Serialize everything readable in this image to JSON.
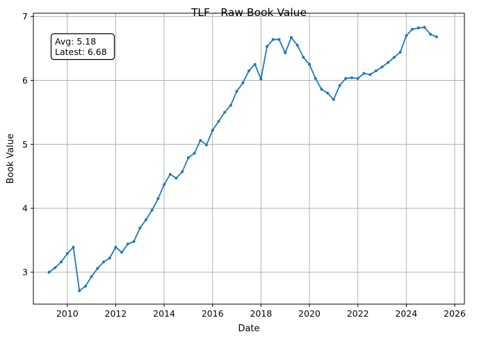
{
  "chart_data": {
    "type": "line",
    "title": "TLF - Raw Book Value",
    "xlabel": "Date",
    "ylabel": "Book Value",
    "xlim": [
      2008.6,
      2026.4
    ],
    "ylim": [
      2.5,
      7.05
    ],
    "x_ticks": [
      2010,
      2012,
      2014,
      2016,
      2018,
      2020,
      2022,
      2024,
      2026
    ],
    "y_ticks": [
      3,
      4,
      5,
      6,
      7
    ],
    "grid": true,
    "colors": {
      "line": "#1f77b4",
      "grid": "#b0b0b0",
      "box_edge": "#000000"
    },
    "annotation": {
      "avg_text": "Avg: 5.18",
      "latest_text": "Latest: 6.68",
      "placement": "top-left"
    },
    "series": [
      {
        "x": [
          2009.25,
          2009.5,
          2009.75,
          2010.0,
          2010.25,
          2010.5,
          2010.75,
          2011.0,
          2011.25,
          2011.5,
          2011.75,
          2012.0,
          2012.25,
          2012.5,
          2012.75,
          2013.0,
          2013.25,
          2013.5,
          2013.75,
          2014.0,
          2014.25,
          2014.5,
          2014.75,
          2015.0,
          2015.25,
          2015.5,
          2015.75,
          2016.0,
          2016.25,
          2016.5,
          2016.75,
          2017.0,
          2017.25,
          2017.5,
          2017.75,
          2018.0,
          2018.25,
          2018.5,
          2018.75,
          2019.0,
          2019.25,
          2019.5,
          2019.75,
          2020.0,
          2020.25,
          2020.5,
          2020.75,
          2021.0,
          2021.25,
          2021.5,
          2021.75,
          2022.0,
          2022.25,
          2022.5,
          2022.75,
          2023.0,
          2023.25,
          2023.5,
          2023.75,
          2024.0,
          2024.25,
          2024.5,
          2024.75,
          2025.0,
          2025.25
        ],
        "values": [
          3.0,
          3.07,
          3.16,
          3.29,
          3.39,
          2.71,
          2.78,
          2.93,
          3.06,
          3.16,
          3.22,
          3.39,
          3.31,
          3.44,
          3.48,
          3.69,
          3.82,
          3.97,
          4.15,
          4.37,
          4.53,
          4.47,
          4.57,
          4.79,
          4.86,
          5.06,
          4.99,
          5.22,
          5.36,
          5.5,
          5.61,
          5.83,
          5.96,
          6.15,
          6.25,
          6.02,
          6.53,
          6.64,
          6.64,
          6.43,
          6.67,
          6.55,
          6.36,
          6.25,
          6.03,
          5.86,
          5.8,
          5.7,
          5.92,
          6.03,
          6.04,
          6.03,
          6.11,
          6.09,
          6.15,
          6.21,
          6.28,
          6.36,
          6.44,
          6.7,
          6.8,
          6.82,
          6.83,
          6.72,
          6.68
        ]
      }
    ]
  }
}
